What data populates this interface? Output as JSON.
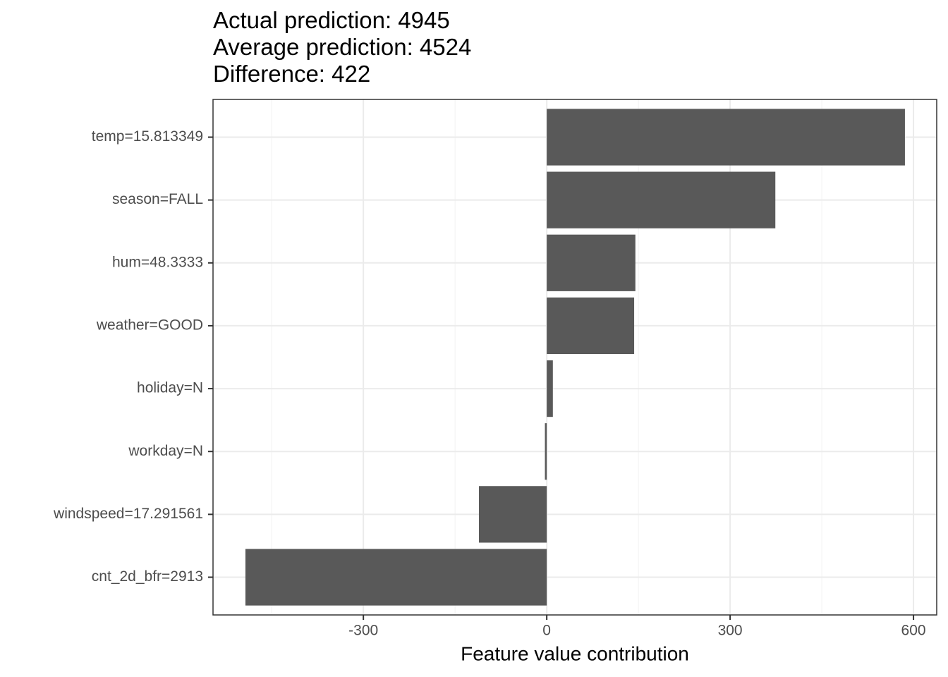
{
  "chart_data": {
    "type": "bar",
    "orientation": "horizontal",
    "title": [
      "Actual prediction: 4945",
      "Average prediction: 4524",
      "Difference: 422"
    ],
    "x_label": "Feature value contribution",
    "categories": [
      "temp=15.813349",
      "season=FALL",
      "hum=48.3333",
      "weather=GOOD",
      "holiday=N",
      "workday=N",
      "windspeed=17.291561",
      "cnt_2d_bfr=2913"
    ],
    "values": [
      586,
      374,
      145,
      143,
      10,
      -3,
      -111,
      -493
    ],
    "color": "#595959",
    "xlim": [
      -546,
      638
    ],
    "xticks": [
      -300,
      0,
      300,
      600
    ],
    "xminorticks": [
      -450,
      -150,
      150,
      450
    ],
    "grid": true
  }
}
